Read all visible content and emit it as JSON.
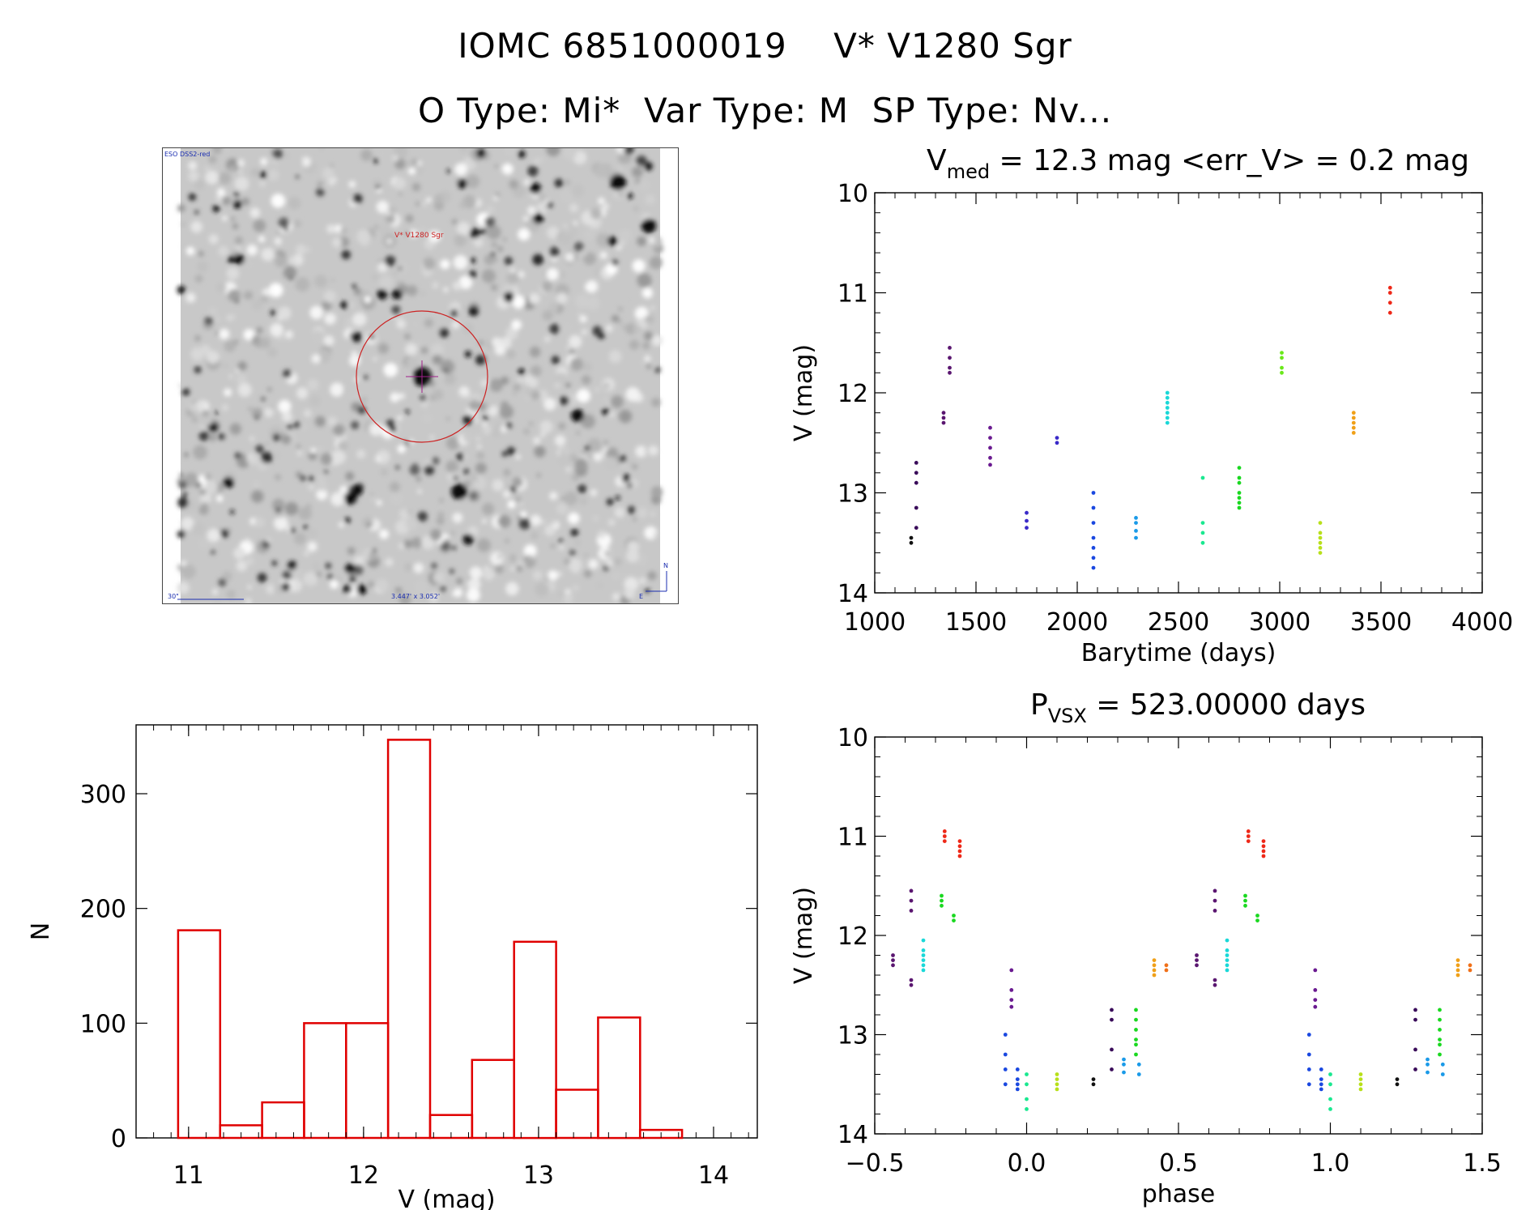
{
  "header": {
    "title_line1": "IOMC 6851000019    V* V1280 Sgr",
    "title_line2": "O Type: Mi*  Var Type: M  SP Type: Nv..."
  },
  "finder": {
    "survey_label": "ESO DSS2-red",
    "target_label": "V* V1280 Sgr",
    "scale_label": "30\"",
    "size_label": "3.447' x 3.052'",
    "north_label": "N",
    "east_label": "E",
    "colors": {
      "circle": "#cc2222",
      "annotation": "#1a2db0"
    }
  },
  "chart_data": [
    {
      "id": "light_curve",
      "type": "scatter",
      "title_main": "V",
      "title_sub": "med",
      "title_rest": " = 12.3 mag <err_V> = 0.2 mag",
      "xlabel": "Barytime (days)",
      "ylabel": "V (mag)",
      "xlim": [
        1000,
        4000
      ],
      "ylim": [
        10,
        14
      ],
      "y_inverted": true,
      "xticks": [
        1000,
        1500,
        2000,
        2500,
        3000,
        3500,
        4000
      ],
      "yticks": [
        10,
        11,
        12,
        13,
        14
      ],
      "groups": [
        {
          "x": 1180,
          "y": [
            13.45,
            13.5
          ],
          "color": "#111111"
        },
        {
          "x": 1205,
          "y": [
            12.7,
            12.8,
            12.9,
            13.15,
            13.35
          ],
          "color": "#3a0c5a"
        },
        {
          "x": 1340,
          "y": [
            12.2,
            12.25,
            12.3
          ],
          "color": "#5a1670"
        },
        {
          "x": 1370,
          "y": [
            11.55,
            11.65,
            11.75,
            11.8
          ],
          "color": "#5a1670"
        },
        {
          "x": 1570,
          "y": [
            12.35,
            12.45,
            12.55,
            12.65,
            12.72
          ],
          "color": "#6a1a90"
        },
        {
          "x": 1750,
          "y": [
            13.2,
            13.28,
            13.35
          ],
          "color": "#3a2ac8"
        },
        {
          "x": 1900,
          "y": [
            12.45,
            12.5
          ],
          "color": "#3a2ac8"
        },
        {
          "x": 2080,
          "y": [
            13.0,
            13.15,
            13.3,
            13.45,
            13.55,
            13.65,
            13.75
          ],
          "color": "#1a48e0"
        },
        {
          "x": 2290,
          "y": [
            13.25,
            13.3,
            13.38,
            13.45
          ],
          "color": "#1a9ae8"
        },
        {
          "x": 2445,
          "y": [
            12.0,
            12.05,
            12.1,
            12.15,
            12.2,
            12.25,
            12.3
          ],
          "color": "#1ad8d8"
        },
        {
          "x": 2620,
          "y": [
            12.85,
            13.3,
            13.4,
            13.5
          ],
          "color": "#1ae890"
        },
        {
          "x": 2800,
          "y": [
            12.75,
            12.85,
            12.9,
            13.0,
            13.05,
            13.1,
            13.15
          ],
          "color": "#1ad820"
        },
        {
          "x": 3010,
          "y": [
            11.6,
            11.65,
            11.75,
            11.8
          ],
          "color": "#6ae81a"
        },
        {
          "x": 3200,
          "y": [
            13.3,
            13.4,
            13.45,
            13.5,
            13.55,
            13.6
          ],
          "color": "#b8e01a"
        },
        {
          "x": 3365,
          "y": [
            12.2,
            12.25,
            12.3,
            12.35,
            12.4
          ],
          "color": "#f0a018"
        },
        {
          "x": 3545,
          "y": [
            10.95,
            11.0,
            11.1,
            11.2
          ],
          "color": "#ee2818"
        }
      ]
    },
    {
      "id": "phase_curve",
      "type": "scatter",
      "title_main": "P",
      "title_sub": "VSX",
      "title_rest": " = 523.00000 days",
      "xlabel": "phase",
      "ylabel": "V (mag)",
      "xlim": [
        -0.5,
        1.5
      ],
      "ylim": [
        10,
        14
      ],
      "y_inverted": true,
      "xticks": [
        "-0.5",
        "0.0",
        "0.5",
        "1.0",
        "1.5"
      ],
      "yticks": [
        10,
        11,
        12,
        13,
        14
      ],
      "groups": [
        {
          "x": -0.44,
          "y": [
            12.2,
            12.25,
            12.3
          ],
          "color": "#5a1670"
        },
        {
          "x": -0.38,
          "y": [
            11.55,
            11.65,
            11.75,
            12.45,
            12.5
          ],
          "color": "#5a1670"
        },
        {
          "x": -0.34,
          "y": [
            12.05,
            12.15,
            12.2,
            12.25,
            12.3,
            12.35
          ],
          "color": "#1ad8d8"
        },
        {
          "x": -0.28,
          "y": [
            11.6,
            11.65,
            11.7
          ],
          "color": "#1ad820"
        },
        {
          "x": -0.27,
          "y": [
            10.95,
            11.0,
            11.05
          ],
          "color": "#ee2818"
        },
        {
          "x": -0.24,
          "y": [
            11.8,
            11.85
          ],
          "color": "#1ad820"
        },
        {
          "x": -0.22,
          "y": [
            11.05,
            11.1,
            11.15,
            11.2
          ],
          "color": "#ee2818"
        },
        {
          "x": -0.07,
          "y": [
            13.0,
            13.2,
            13.35,
            13.5
          ],
          "color": "#1a48e0"
        },
        {
          "x": -0.05,
          "y": [
            12.35,
            12.55,
            12.65,
            12.72
          ],
          "color": "#6a1a90"
        },
        {
          "x": -0.03,
          "y": [
            13.35,
            13.45,
            13.5,
            13.55
          ],
          "color": "#1a48e0"
        },
        {
          "x": 0.0,
          "y": [
            13.4,
            13.5,
            13.65,
            13.75
          ],
          "color": "#1ae890"
        },
        {
          "x": 0.1,
          "y": [
            13.4,
            13.45,
            13.5,
            13.55
          ],
          "color": "#b8e01a"
        },
        {
          "x": 0.22,
          "y": [
            13.45,
            13.5
          ],
          "color": "#111111"
        },
        {
          "x": 0.28,
          "y": [
            12.75,
            12.85,
            13.15,
            13.35
          ],
          "color": "#3a0c5a"
        },
        {
          "x": 0.32,
          "y": [
            13.25,
            13.3,
            13.38
          ],
          "color": "#1a9ae8"
        },
        {
          "x": 0.36,
          "y": [
            12.75,
            12.85,
            12.95,
            13.05,
            13.1,
            13.2
          ],
          "color": "#1ad820"
        },
        {
          "x": 0.37,
          "y": [
            13.3,
            13.4
          ],
          "color": "#1a9ae8"
        },
        {
          "x": 0.42,
          "y": [
            12.25,
            12.3,
            12.35,
            12.4
          ],
          "color": "#f0a018"
        },
        {
          "x": 0.46,
          "y": [
            12.3,
            12.35
          ],
          "color": "#f07018"
        },
        {
          "x": 0.56,
          "y": [
            12.2,
            12.25,
            12.3
          ],
          "color": "#5a1670"
        },
        {
          "x": 0.62,
          "y": [
            11.55,
            11.65,
            11.75,
            12.45,
            12.5
          ],
          "color": "#5a1670"
        },
        {
          "x": 0.66,
          "y": [
            12.05,
            12.15,
            12.2,
            12.25,
            12.3,
            12.35
          ],
          "color": "#1ad8d8"
        },
        {
          "x": 0.72,
          "y": [
            11.6,
            11.65,
            11.7
          ],
          "color": "#1ad820"
        },
        {
          "x": 0.73,
          "y": [
            10.95,
            11.0,
            11.05
          ],
          "color": "#ee2818"
        },
        {
          "x": 0.76,
          "y": [
            11.8,
            11.85
          ],
          "color": "#1ad820"
        },
        {
          "x": 0.78,
          "y": [
            11.05,
            11.1,
            11.15,
            11.2
          ],
          "color": "#ee2818"
        },
        {
          "x": 0.93,
          "y": [
            13.0,
            13.2,
            13.35,
            13.5
          ],
          "color": "#1a48e0"
        },
        {
          "x": 0.95,
          "y": [
            12.35,
            12.55,
            12.65,
            12.72
          ],
          "color": "#6a1a90"
        },
        {
          "x": 0.97,
          "y": [
            13.35,
            13.45,
            13.5,
            13.55
          ],
          "color": "#1a48e0"
        },
        {
          "x": 1.0,
          "y": [
            13.4,
            13.5,
            13.65,
            13.75
          ],
          "color": "#1ae890"
        },
        {
          "x": 1.1,
          "y": [
            13.4,
            13.45,
            13.5,
            13.55
          ],
          "color": "#b8e01a"
        },
        {
          "x": 1.22,
          "y": [
            13.45,
            13.5
          ],
          "color": "#111111"
        },
        {
          "x": 1.28,
          "y": [
            12.75,
            12.85,
            13.15,
            13.35
          ],
          "color": "#3a0c5a"
        },
        {
          "x": 1.32,
          "y": [
            13.25,
            13.3,
            13.38
          ],
          "color": "#1a9ae8"
        },
        {
          "x": 1.36,
          "y": [
            12.75,
            12.85,
            12.95,
            13.05,
            13.1,
            13.2
          ],
          "color": "#1ad820"
        },
        {
          "x": 1.37,
          "y": [
            13.3,
            13.4
          ],
          "color": "#1a9ae8"
        },
        {
          "x": 1.42,
          "y": [
            12.25,
            12.3,
            12.35,
            12.4
          ],
          "color": "#f0a018"
        },
        {
          "x": 1.46,
          "y": [
            12.3,
            12.35
          ],
          "color": "#f07018"
        }
      ]
    },
    {
      "id": "histogram",
      "type": "bar",
      "xlabel": "V (mag)",
      "ylabel": "N",
      "xlim": [
        10.7,
        14.25
      ],
      "ylim": [
        0,
        360
      ],
      "xticks": [
        11,
        12,
        13,
        14
      ],
      "yticks": [
        0,
        100,
        200,
        300
      ],
      "bin_width": 0.24,
      "bins": [
        {
          "left": 10.94,
          "count": 181
        },
        {
          "left": 11.18,
          "count": 11
        },
        {
          "left": 11.42,
          "count": 31
        },
        {
          "left": 11.66,
          "count": 100
        },
        {
          "left": 11.9,
          "count": 100
        },
        {
          "left": 12.14,
          "count": 347
        },
        {
          "left": 12.38,
          "count": 20
        },
        {
          "left": 12.62,
          "count": 68
        },
        {
          "left": 12.86,
          "count": 171
        },
        {
          "left": 13.1,
          "count": 42
        },
        {
          "left": 13.34,
          "count": 105
        },
        {
          "left": 13.58,
          "count": 7
        }
      ],
      "color": "#e00000"
    }
  ]
}
